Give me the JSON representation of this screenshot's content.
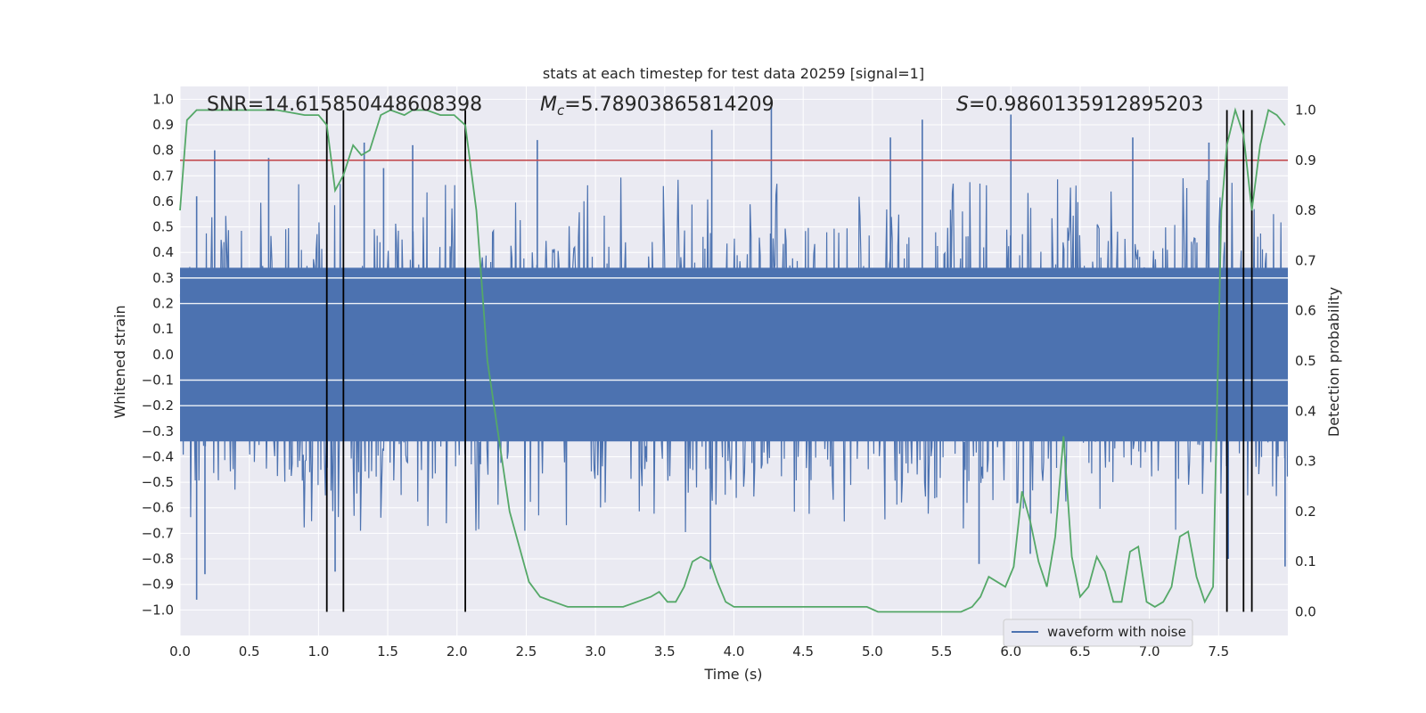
{
  "chart_data": {
    "type": "line",
    "title": "stats at each timestep for test data 20259 [signal=1]",
    "xlabel": "Time (s)",
    "ylabel": "Whitened strain",
    "y2label": "Detection probability",
    "xlim": [
      0.0,
      8.0
    ],
    "ylim": [
      -1.1,
      1.05
    ],
    "y2lim": [
      -0.047,
      1.047
    ],
    "x_ticks": [
      0.0,
      0.5,
      1.0,
      1.5,
      2.0,
      2.5,
      3.0,
      3.5,
      4.0,
      4.5,
      5.0,
      5.5,
      6.0,
      6.5,
      7.0,
      7.5
    ],
    "x_tick_labels": [
      "0.0",
      "0.5",
      "1.0",
      "1.5",
      "2.0",
      "2.5",
      "3.0",
      "3.5",
      "4.0",
      "4.5",
      "5.0",
      "5.5",
      "6.0",
      "6.5",
      "7.0",
      "7.5"
    ],
    "y_ticks": [
      1.0,
      0.9,
      0.8,
      0.7,
      0.6,
      0.5,
      0.4,
      0.3,
      0.2,
      0.1,
      0.0,
      -0.1,
      -0.2,
      -0.3,
      -0.4,
      -0.5,
      -0.6,
      -0.7,
      -0.8,
      -0.9,
      -1.0
    ],
    "y_tick_labels": [
      "1.0",
      "0.9",
      "0.8",
      "0.7",
      "0.6",
      "0.5",
      "0.4",
      "0.3",
      "0.2",
      "0.1",
      "0.0",
      "−0.1",
      "−0.2",
      "−0.3",
      "−0.4",
      "−0.5",
      "−0.6",
      "−0.7",
      "−0.8",
      "−0.9",
      "−1.0"
    ],
    "y2_ticks": [
      1.0,
      0.9,
      0.8,
      0.7,
      0.6,
      0.5,
      0.4,
      0.3,
      0.2,
      0.1,
      0.0
    ],
    "y2_tick_labels": [
      "1.0",
      "0.9",
      "0.8",
      "0.7",
      "0.6",
      "0.5",
      "0.4",
      "0.3",
      "0.2",
      "0.1",
      "0.0"
    ],
    "annotations": {
      "snr": "SNR=14.615850448608398",
      "mc_symbol": "M",
      "mc_sub": "c",
      "mc_value": "=5.78903865814209",
      "s_symbol": "S",
      "s_value": "=0.9860135912895203"
    },
    "legend": {
      "label": "waveform with noise",
      "placement": "lower-right"
    },
    "threshold": {
      "value": 0.9,
      "axis": "y2",
      "color": "#c44e52"
    },
    "vlines": [
      1.06,
      1.18,
      2.06,
      7.56,
      7.68,
      7.74
    ],
    "waveform": {
      "name": "waveform with noise",
      "color": "#4c72b0",
      "n_samples": 1200,
      "seed": 20259,
      "core_amplitude": 0.34,
      "peaks_upper": [
        {
          "x": 0.12,
          "y": 0.62
        },
        {
          "x": 0.25,
          "y": 0.8
        },
        {
          "x": 0.64,
          "y": 0.77
        },
        {
          "x": 1.33,
          "y": 0.83
        },
        {
          "x": 1.47,
          "y": 0.73
        },
        {
          "x": 1.68,
          "y": 0.82
        },
        {
          "x": 2.58,
          "y": 0.84
        },
        {
          "x": 3.84,
          "y": 0.88
        },
        {
          "x": 4.27,
          "y": 0.97
        },
        {
          "x": 5.13,
          "y": 0.85
        },
        {
          "x": 5.36,
          "y": 0.92
        },
        {
          "x": 6.0,
          "y": 0.94
        },
        {
          "x": 6.88,
          "y": 0.85
        },
        {
          "x": 7.43,
          "y": 0.83
        }
      ],
      "peaks_lower": [
        {
          "x": 0.12,
          "y": -0.96
        },
        {
          "x": 0.18,
          "y": -0.86
        },
        {
          "x": 1.12,
          "y": -0.85
        },
        {
          "x": 3.83,
          "y": -0.84
        },
        {
          "x": 5.77,
          "y": -0.82
        },
        {
          "x": 6.14,
          "y": -0.78
        },
        {
          "x": 7.57,
          "y": -0.8
        },
        {
          "x": 7.98,
          "y": -0.83
        }
      ]
    },
    "series": [
      {
        "name": "detection probability",
        "axis": "y2",
        "color": "#55a868",
        "x": [
          0.0,
          0.05,
          0.12,
          0.25,
          0.45,
          0.7,
          0.9,
          1.0,
          1.06,
          1.12,
          1.18,
          1.25,
          1.31,
          1.37,
          1.45,
          1.52,
          1.62,
          1.68,
          1.78,
          1.88,
          1.98,
          2.06,
          2.14,
          2.22,
          2.3,
          2.38,
          2.46,
          2.52,
          2.6,
          2.7,
          2.8,
          2.9,
          3.0,
          3.1,
          3.2,
          3.3,
          3.4,
          3.46,
          3.52,
          3.58,
          3.64,
          3.7,
          3.76,
          3.83,
          3.88,
          3.94,
          4.0,
          4.08,
          4.18,
          4.28,
          4.38,
          4.48,
          4.58,
          4.66,
          4.74,
          4.82,
          4.9,
          4.96,
          5.04,
          5.14,
          5.24,
          5.34,
          5.44,
          5.54,
          5.64,
          5.72,
          5.78,
          5.84,
          5.9,
          5.96,
          6.02,
          6.08,
          6.14,
          6.2,
          6.26,
          6.32,
          6.38,
          6.44,
          6.5,
          6.56,
          6.62,
          6.68,
          6.74,
          6.8,
          6.86,
          6.92,
          6.98,
          7.04,
          7.1,
          7.16,
          7.22,
          7.28,
          7.34,
          7.4,
          7.46,
          7.52,
          7.56,
          7.62,
          7.68,
          7.74,
          7.8,
          7.86,
          7.92,
          7.98
        ],
        "y": [
          0.8,
          0.98,
          1.0,
          1.0,
          1.0,
          1.0,
          0.99,
          0.99,
          0.97,
          0.84,
          0.87,
          0.93,
          0.91,
          0.92,
          0.99,
          1.0,
          0.99,
          1.0,
          1.0,
          0.99,
          0.99,
          0.97,
          0.8,
          0.5,
          0.35,
          0.2,
          0.12,
          0.06,
          0.03,
          0.02,
          0.01,
          0.01,
          0.01,
          0.01,
          0.01,
          0.02,
          0.03,
          0.04,
          0.02,
          0.02,
          0.05,
          0.1,
          0.11,
          0.1,
          0.06,
          0.02,
          0.01,
          0.01,
          0.01,
          0.01,
          0.01,
          0.01,
          0.01,
          0.01,
          0.01,
          0.01,
          0.01,
          0.01,
          0.0,
          0.0,
          0.0,
          0.0,
          0.0,
          0.0,
          0.0,
          0.01,
          0.03,
          0.07,
          0.06,
          0.05,
          0.09,
          0.24,
          0.18,
          0.1,
          0.05,
          0.15,
          0.35,
          0.11,
          0.03,
          0.05,
          0.11,
          0.08,
          0.02,
          0.02,
          0.12,
          0.13,
          0.02,
          0.01,
          0.02,
          0.05,
          0.15,
          0.16,
          0.07,
          0.02,
          0.05,
          0.8,
          0.93,
          1.0,
          0.95,
          0.8,
          0.93,
          1.0,
          0.99,
          0.97
        ]
      }
    ]
  }
}
